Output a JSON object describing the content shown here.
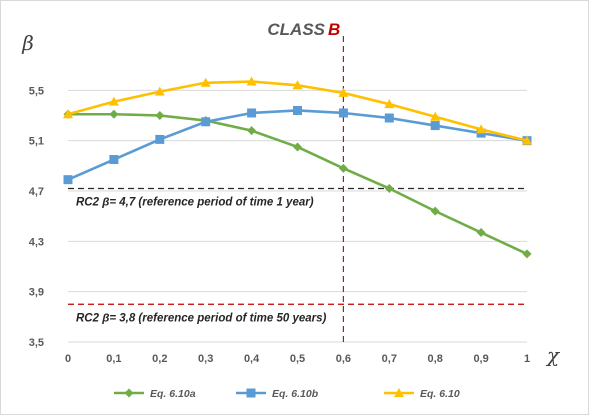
{
  "chart_data": {
    "type": "line",
    "title_prefix": "CLASS ",
    "title_highlight": "B",
    "xlabel": "χ",
    "ylabel": "β",
    "xlim": [
      0,
      1
    ],
    "ylim": [
      3.5,
      5.9
    ],
    "x": [
      0,
      0.1,
      0.2,
      0.3,
      0.4,
      0.5,
      0.6,
      0.7,
      0.8,
      0.9,
      1
    ],
    "x_tick_labels": [
      "0",
      "0,1",
      "0,2",
      "0,3",
      "0,4",
      "0,5",
      "0,6",
      "0,7",
      "0,8",
      "0,9",
      "1"
    ],
    "y_ticks": [
      3.5,
      3.9,
      4.3,
      4.7,
      5.1,
      5.5
    ],
    "y_tick_labels": [
      "3,5",
      "3,9",
      "4,3",
      "4,7",
      "5,1",
      "5,5"
    ],
    "grid": "horizontal",
    "legend_position": "bottom",
    "series": [
      {
        "name": "Eq. 6.10a",
        "color": "#70ad47",
        "marker": "diamond",
        "values": [
          5.31,
          5.31,
          5.3,
          5.26,
          5.18,
          5.05,
          4.88,
          4.72,
          4.54,
          4.37,
          4.2
        ]
      },
      {
        "name": "Eq. 6.10b",
        "color": "#5b9bd5",
        "marker": "square",
        "values": [
          4.79,
          4.95,
          5.11,
          5.25,
          5.32,
          5.34,
          5.32,
          5.28,
          5.22,
          5.16,
          5.1
        ]
      },
      {
        "name": "Eq. 6.10",
        "color": "#ffc000",
        "marker": "triangle",
        "values": [
          5.31,
          5.41,
          5.49,
          5.56,
          5.57,
          5.54,
          5.48,
          5.39,
          5.29,
          5.19,
          5.1
        ]
      }
    ],
    "reference_lines": [
      {
        "orientation": "horizontal",
        "value": 4.72,
        "color": "#262626",
        "label": "RC2 β= 4,7 (reference period of time 1 year)"
      },
      {
        "orientation": "horizontal",
        "value": 3.8,
        "color": "#c00000",
        "label": "RC2 β= 3,8 (reference period of time 50 years)"
      },
      {
        "orientation": "vertical",
        "value": 0.6,
        "color": "#8b2c1a",
        "label": ""
      }
    ]
  }
}
